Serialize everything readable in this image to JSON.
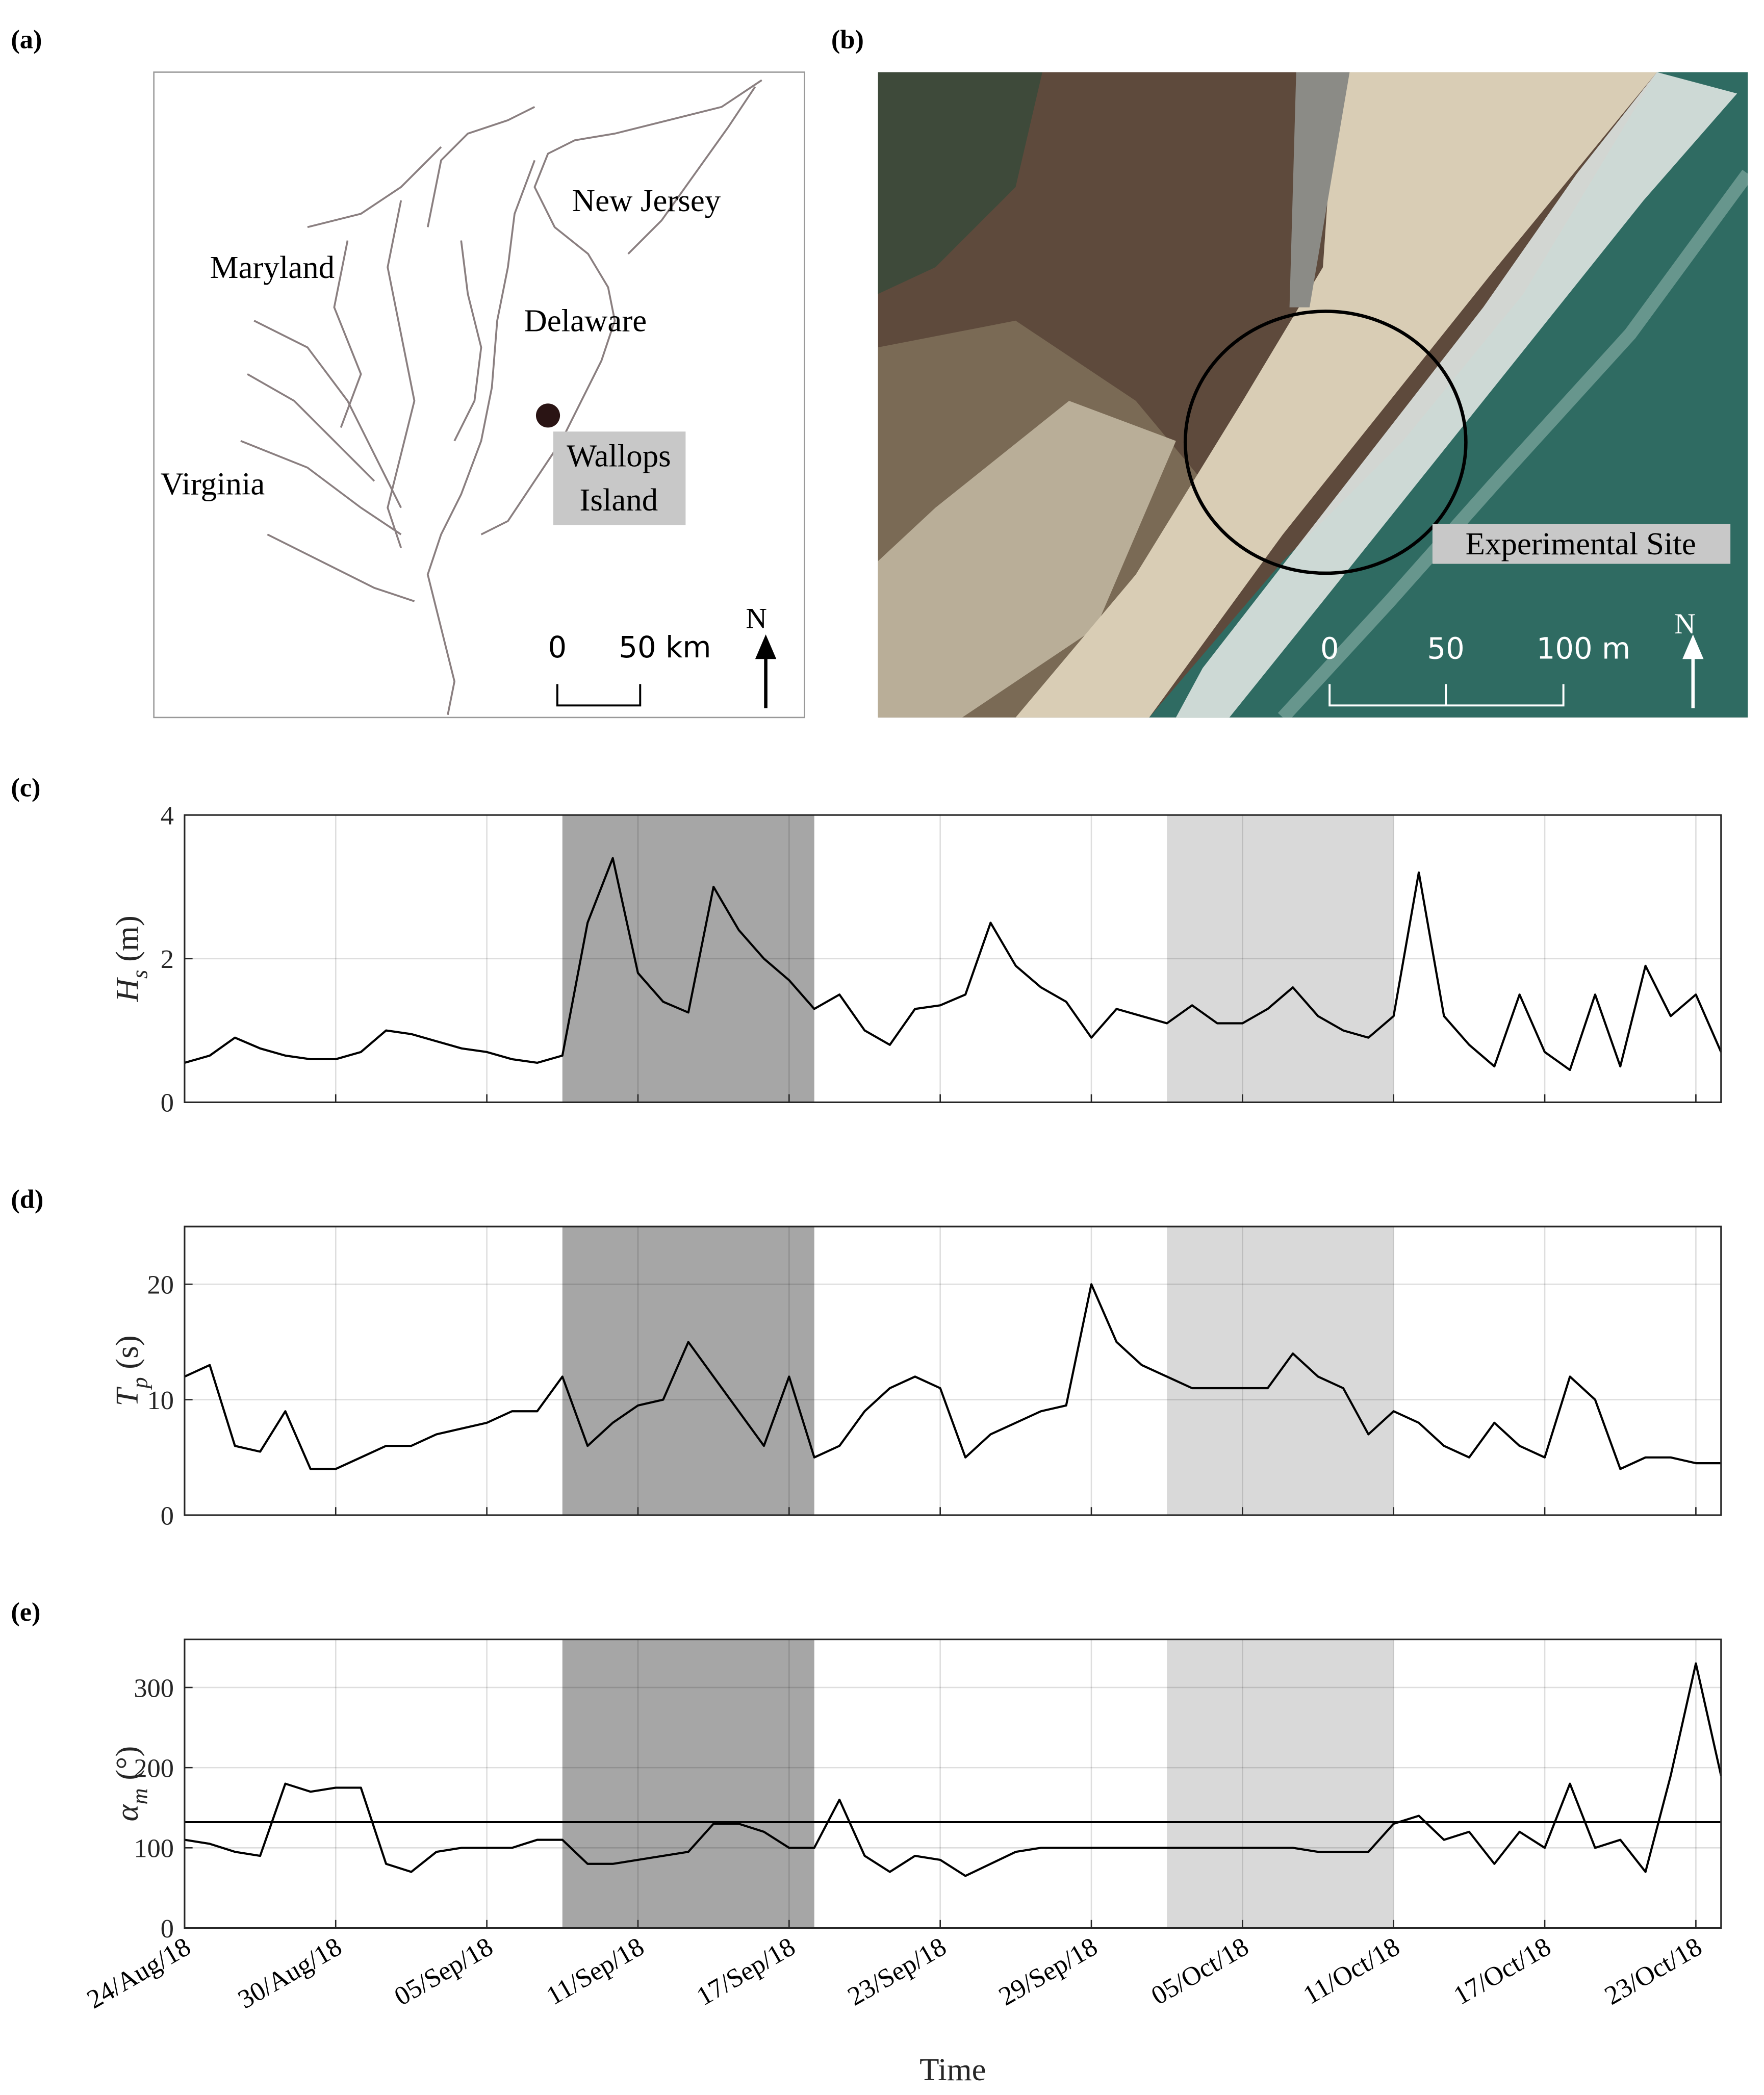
{
  "panels": {
    "a": {
      "label": "(a)",
      "places": [
        "New Jersey",
        "Maryland",
        "Delaware",
        "Virginia"
      ],
      "site": [
        "Wallops",
        "Island"
      ],
      "scale": [
        "0",
        "50 km"
      ],
      "north": "N"
    },
    "b": {
      "label": "(b)",
      "site": "Experimental Site",
      "scale": [
        "0",
        "50",
        "100 m"
      ],
      "north": "N"
    }
  },
  "chart_data": [
    {
      "type": "line",
      "label": "(c)",
      "ylabel": {
        "symbol": "H",
        "subscript": "s",
        "unit": "(m)"
      },
      "x": [
        "2018-08-24",
        "2018-08-25",
        "2018-08-26",
        "2018-08-27",
        "2018-08-28",
        "2018-08-29",
        "2018-08-30",
        "2018-08-31",
        "2018-09-01",
        "2018-09-02",
        "2018-09-03",
        "2018-09-04",
        "2018-09-05",
        "2018-09-06",
        "2018-09-07",
        "2018-09-08",
        "2018-09-09",
        "2018-09-10",
        "2018-09-11",
        "2018-09-12",
        "2018-09-13",
        "2018-09-14",
        "2018-09-15",
        "2018-09-16",
        "2018-09-17",
        "2018-09-18",
        "2018-09-19",
        "2018-09-20",
        "2018-09-21",
        "2018-09-22",
        "2018-09-23",
        "2018-09-24",
        "2018-09-25",
        "2018-09-26",
        "2018-09-27",
        "2018-09-28",
        "2018-09-29",
        "2018-09-30",
        "2018-10-01",
        "2018-10-02",
        "2018-10-03",
        "2018-10-04",
        "2018-10-05",
        "2018-10-06",
        "2018-10-07",
        "2018-10-08",
        "2018-10-09",
        "2018-10-10",
        "2018-10-11",
        "2018-10-12",
        "2018-10-13",
        "2018-10-14",
        "2018-10-15",
        "2018-10-16",
        "2018-10-17",
        "2018-10-18",
        "2018-10-19",
        "2018-10-20",
        "2018-10-21",
        "2018-10-22",
        "2018-10-23",
        "2018-10-24"
      ],
      "series": [
        {
          "color": "#000000",
          "values": [
            0.55,
            0.65,
            0.9,
            0.75,
            0.65,
            0.6,
            0.6,
            0.7,
            1.0,
            0.95,
            0.85,
            0.75,
            0.7,
            0.6,
            0.55,
            0.65,
            2.5,
            3.4,
            1.8,
            1.4,
            1.25,
            3.0,
            2.4,
            2.0,
            1.7,
            1.3,
            1.5,
            1.0,
            0.8,
            1.3,
            1.35,
            1.5,
            2.5,
            1.9,
            1.6,
            1.4,
            0.9,
            1.3,
            1.2,
            1.1,
            1.35,
            1.1,
            1.1,
            1.3,
            1.6,
            1.2,
            1.0,
            0.9,
            1.2,
            3.2,
            1.2,
            0.8,
            0.5,
            1.5,
            0.7,
            0.45,
            1.5,
            0.5,
            1.9,
            1.2,
            1.5,
            0.7
          ]
        }
      ],
      "highlights": [
        {
          "start": "2018-09-08",
          "end": "2018-09-18",
          "color": "#a6a6a6"
        },
        {
          "start": "2018-10-02",
          "end": "2018-10-11",
          "color": "#d9d9d9"
        }
      ],
      "xlim": [
        "2018-08-24",
        "2018-10-24"
      ],
      "xticks": [
        "2018-08-24",
        "2018-08-30",
        "2018-09-05",
        "2018-09-11",
        "2018-09-17",
        "2018-09-23",
        "2018-09-29",
        "2018-10-05",
        "2018-10-11",
        "2018-10-17",
        "2018-10-23"
      ],
      "ylim": [
        0,
        4
      ],
      "yticks": [
        0,
        2,
        4
      ],
      "grid": true
    },
    {
      "type": "line",
      "label": "(d)",
      "ylabel": {
        "symbol": "T",
        "subscript": "p",
        "unit": "(s)"
      },
      "x": [
        "2018-08-24",
        "2018-08-25",
        "2018-08-26",
        "2018-08-27",
        "2018-08-28",
        "2018-08-29",
        "2018-08-30",
        "2018-08-31",
        "2018-09-01",
        "2018-09-02",
        "2018-09-03",
        "2018-09-04",
        "2018-09-05",
        "2018-09-06",
        "2018-09-07",
        "2018-09-08",
        "2018-09-09",
        "2018-09-10",
        "2018-09-11",
        "2018-09-12",
        "2018-09-13",
        "2018-09-14",
        "2018-09-15",
        "2018-09-16",
        "2018-09-17",
        "2018-09-18",
        "2018-09-19",
        "2018-09-20",
        "2018-09-21",
        "2018-09-22",
        "2018-09-23",
        "2018-09-24",
        "2018-09-25",
        "2018-09-26",
        "2018-09-27",
        "2018-09-28",
        "2018-09-29",
        "2018-09-30",
        "2018-10-01",
        "2018-10-02",
        "2018-10-03",
        "2018-10-04",
        "2018-10-05",
        "2018-10-06",
        "2018-10-07",
        "2018-10-08",
        "2018-10-09",
        "2018-10-10",
        "2018-10-11",
        "2018-10-12",
        "2018-10-13",
        "2018-10-14",
        "2018-10-15",
        "2018-10-16",
        "2018-10-17",
        "2018-10-18",
        "2018-10-19",
        "2018-10-20",
        "2018-10-21",
        "2018-10-22",
        "2018-10-23",
        "2018-10-24"
      ],
      "series": [
        {
          "color": "#000000",
          "values": [
            12,
            13,
            6,
            5.5,
            9,
            4,
            4,
            5,
            6,
            6,
            7,
            7.5,
            8,
            9,
            9,
            12,
            6,
            8,
            9.5,
            10,
            15,
            12,
            9,
            6,
            12,
            5,
            6,
            9,
            11,
            12,
            11,
            5,
            7,
            8,
            9,
            9.5,
            20,
            15,
            13,
            12,
            11,
            11,
            11,
            11,
            14,
            12,
            11,
            7,
            9,
            8,
            6,
            5,
            8,
            6,
            5,
            12,
            10,
            4,
            5,
            5,
            4.5,
            4.5
          ]
        }
      ],
      "highlights": [
        {
          "start": "2018-09-08",
          "end": "2018-09-18",
          "color": "#a6a6a6"
        },
        {
          "start": "2018-10-02",
          "end": "2018-10-11",
          "color": "#d9d9d9"
        }
      ],
      "xlim": [
        "2018-08-24",
        "2018-10-24"
      ],
      "xticks": [
        "2018-08-24",
        "2018-08-30",
        "2018-09-05",
        "2018-09-11",
        "2018-09-17",
        "2018-09-23",
        "2018-09-29",
        "2018-10-05",
        "2018-10-11",
        "2018-10-17",
        "2018-10-23"
      ],
      "ylim": [
        0,
        25
      ],
      "yticks": [
        0,
        10,
        20
      ],
      "grid": true
    },
    {
      "type": "line",
      "label": "(e)",
      "ylabel": {
        "symbol": "α",
        "subscript": "m",
        "unit": "(°)"
      },
      "xlabel": "Time",
      "x": [
        "2018-08-24",
        "2018-08-25",
        "2018-08-26",
        "2018-08-27",
        "2018-08-28",
        "2018-08-29",
        "2018-08-30",
        "2018-08-31",
        "2018-09-01",
        "2018-09-02",
        "2018-09-03",
        "2018-09-04",
        "2018-09-05",
        "2018-09-06",
        "2018-09-07",
        "2018-09-08",
        "2018-09-09",
        "2018-09-10",
        "2018-09-11",
        "2018-09-12",
        "2018-09-13",
        "2018-09-14",
        "2018-09-15",
        "2018-09-16",
        "2018-09-17",
        "2018-09-18",
        "2018-09-19",
        "2018-09-20",
        "2018-09-21",
        "2018-09-22",
        "2018-09-23",
        "2018-09-24",
        "2018-09-25",
        "2018-09-26",
        "2018-09-27",
        "2018-09-28",
        "2018-09-29",
        "2018-09-30",
        "2018-10-01",
        "2018-10-02",
        "2018-10-03",
        "2018-10-04",
        "2018-10-05",
        "2018-10-06",
        "2018-10-07",
        "2018-10-08",
        "2018-10-09",
        "2018-10-10",
        "2018-10-11",
        "2018-10-12",
        "2018-10-13",
        "2018-10-14",
        "2018-10-15",
        "2018-10-16",
        "2018-10-17",
        "2018-10-18",
        "2018-10-19",
        "2018-10-20",
        "2018-10-21",
        "2018-10-22",
        "2018-10-23",
        "2018-10-24"
      ],
      "series": [
        {
          "color": "#000000",
          "values": [
            110,
            105,
            95,
            90,
            180,
            170,
            175,
            175,
            80,
            70,
            95,
            100,
            100,
            100,
            110,
            110,
            80,
            80,
            85,
            90,
            95,
            130,
            130,
            120,
            100,
            100,
            160,
            90,
            70,
            90,
            85,
            65,
            80,
            95,
            100,
            100,
            100,
            100,
            100,
            100,
            100,
            100,
            100,
            100,
            100,
            95,
            95,
            95,
            130,
            140,
            110,
            120,
            80,
            120,
            100,
            180,
            100,
            110,
            70,
            190,
            330,
            190
          ]
        }
      ],
      "hline": 132,
      "highlights": [
        {
          "start": "2018-09-08",
          "end": "2018-09-18",
          "color": "#a6a6a6"
        },
        {
          "start": "2018-10-02",
          "end": "2018-10-11",
          "color": "#d9d9d9"
        }
      ],
      "xlim": [
        "2018-08-24",
        "2018-10-24"
      ],
      "xticks": [
        {
          "value": "2018-08-24",
          "label": "24/Aug/18"
        },
        {
          "value": "2018-08-30",
          "label": "30/Aug/18"
        },
        {
          "value": "2018-09-05",
          "label": "05/Sep/18"
        },
        {
          "value": "2018-09-11",
          "label": "11/Sep/18"
        },
        {
          "value": "2018-09-17",
          "label": "17/Sep/18"
        },
        {
          "value": "2018-09-23",
          "label": "23/Sep/18"
        },
        {
          "value": "2018-09-29",
          "label": "29/Sep/18"
        },
        {
          "value": "2018-10-05",
          "label": "05/Oct/18"
        },
        {
          "value": "2018-10-11",
          "label": "11/Oct/18"
        },
        {
          "value": "2018-10-17",
          "label": "17/Oct/18"
        },
        {
          "value": "2018-10-23",
          "label": "23/Oct/18"
        }
      ],
      "ylim": [
        0,
        360
      ],
      "yticks": [
        0,
        100,
        200,
        300
      ],
      "grid": true
    }
  ]
}
